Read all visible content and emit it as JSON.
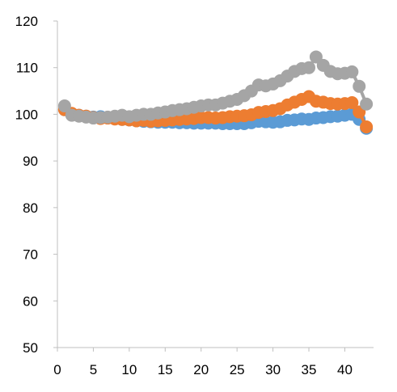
{
  "chart_data": {
    "type": "line",
    "title": "",
    "xlabel": "",
    "ylabel": "",
    "xlim": [
      0,
      44
    ],
    "ylim": [
      50,
      120
    ],
    "x_ticks": [
      0,
      5,
      10,
      15,
      20,
      25,
      30,
      35,
      40
    ],
    "y_ticks": [
      50,
      60,
      70,
      80,
      90,
      100,
      110,
      120
    ],
    "x_tick_labels": [
      "0",
      "5",
      "10",
      "15",
      "20",
      "25",
      "30",
      "35",
      "40"
    ],
    "y_tick_labels": [
      "50",
      "60",
      "70",
      "80",
      "90",
      "100",
      "110",
      "120"
    ],
    "grid": false,
    "legend": "none",
    "marker": "circle",
    "x": [
      1,
      2,
      3,
      4,
      5,
      6,
      7,
      8,
      9,
      10,
      11,
      12,
      13,
      14,
      15,
      16,
      17,
      18,
      19,
      20,
      21,
      22,
      23,
      24,
      25,
      26,
      27,
      28,
      29,
      30,
      31,
      32,
      33,
      34,
      35,
      36,
      37,
      38,
      39,
      40,
      41,
      42,
      43
    ],
    "series": [
      {
        "color": "#5B9BD5",
        "values": [
          101,
          100,
          99.8,
          99.6,
          99.4,
          99.5,
          99.3,
          99.1,
          98.9,
          98.8,
          98.6,
          98.5,
          98.4,
          98.3,
          98.3,
          98.3,
          98.2,
          98.2,
          98.1,
          98.1,
          98.1,
          98.1,
          98.0,
          98.0,
          98.0,
          98.0,
          98.2,
          98.5,
          98.4,
          98.3,
          98.4,
          98.7,
          98.8,
          99.0,
          98.9,
          99.2,
          99.3,
          99.5,
          99.6,
          99.8,
          100.0,
          98.9,
          97.0
        ]
      },
      {
        "color": "#ED7D31",
        "values": [
          101,
          100.2,
          99.8,
          99.6,
          99.3,
          99.1,
          99.2,
          99.0,
          98.9,
          98.8,
          98.6,
          98.7,
          98.5,
          98.6,
          98.7,
          98.8,
          98.9,
          99.0,
          99.1,
          99.3,
          99.3,
          99.2,
          99.3,
          99.5,
          99.6,
          99.7,
          99.9,
          100.4,
          100.6,
          100.8,
          101.2,
          102.0,
          102.6,
          103.2,
          103.8,
          102.8,
          102.6,
          102.3,
          102.2,
          102.3,
          102.5,
          100.5,
          97.3
        ]
      },
      {
        "color": "#A5A5A5",
        "values": [
          101.8,
          99.8,
          99.6,
          99.4,
          99.2,
          99.3,
          99.4,
          99.6,
          99.8,
          99.5,
          99.8,
          100.0,
          100.0,
          100.3,
          100.5,
          100.8,
          101.0,
          101.2,
          101.5,
          101.8,
          102.0,
          102.0,
          102.4,
          102.8,
          103.2,
          104.0,
          105.0,
          106.3,
          106.1,
          106.5,
          107.2,
          108.2,
          109.2,
          109.8,
          110.0,
          112.3,
          110.5,
          109.2,
          108.7,
          108.8,
          109.1,
          106.0,
          102.2
        ]
      }
    ]
  }
}
